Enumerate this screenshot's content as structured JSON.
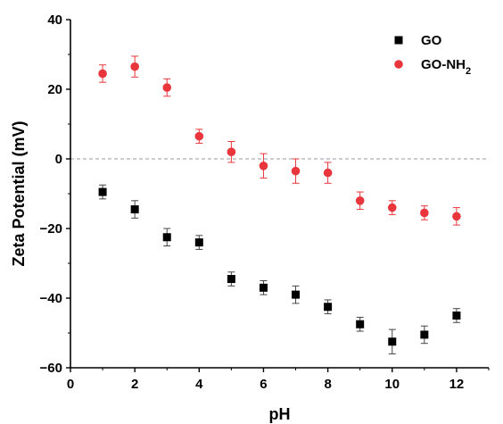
{
  "chart_data": {
    "type": "scatter",
    "xlabel": "pH",
    "ylabel": "Zeta Potential (mV)",
    "xlim": [
      0,
      13
    ],
    "ylim": [
      -60,
      40
    ],
    "xticks": [
      0,
      2,
      4,
      6,
      8,
      10,
      12
    ],
    "yticks": [
      -60,
      -40,
      -20,
      0,
      20,
      40
    ],
    "grid": false,
    "reference_line": {
      "y": 0,
      "style": "dashed"
    },
    "legend": {
      "position": "top-right"
    },
    "series": [
      {
        "name": "GO",
        "marker": "square",
        "color": "#000000",
        "x": [
          1,
          2,
          3,
          4,
          5,
          6,
          7,
          8,
          9,
          10,
          11,
          12
        ],
        "y": [
          -9.5,
          -14.5,
          -22.5,
          -24,
          -34.5,
          -37,
          -39,
          -42.5,
          -47.5,
          -52.5,
          -50.5,
          -45
        ],
        "err": [
          2,
          2.5,
          2.5,
          2,
          2,
          2,
          2.5,
          2,
          2,
          3.5,
          2.5,
          2
        ]
      },
      {
        "name": "GO-NH",
        "name_sub": "2",
        "marker": "circle",
        "color": "#e8363c",
        "x": [
          1,
          2,
          3,
          4,
          5,
          6,
          7,
          8,
          9,
          10,
          11,
          12
        ],
        "y": [
          24.5,
          26.5,
          20.5,
          6.5,
          2,
          -2,
          -3.5,
          -4,
          -12,
          -14,
          -15.5,
          -16.5
        ],
        "err": [
          2.5,
          3,
          2.5,
          2,
          3,
          3.5,
          3.5,
          3,
          2.5,
          2,
          2,
          2.5
        ]
      }
    ]
  }
}
